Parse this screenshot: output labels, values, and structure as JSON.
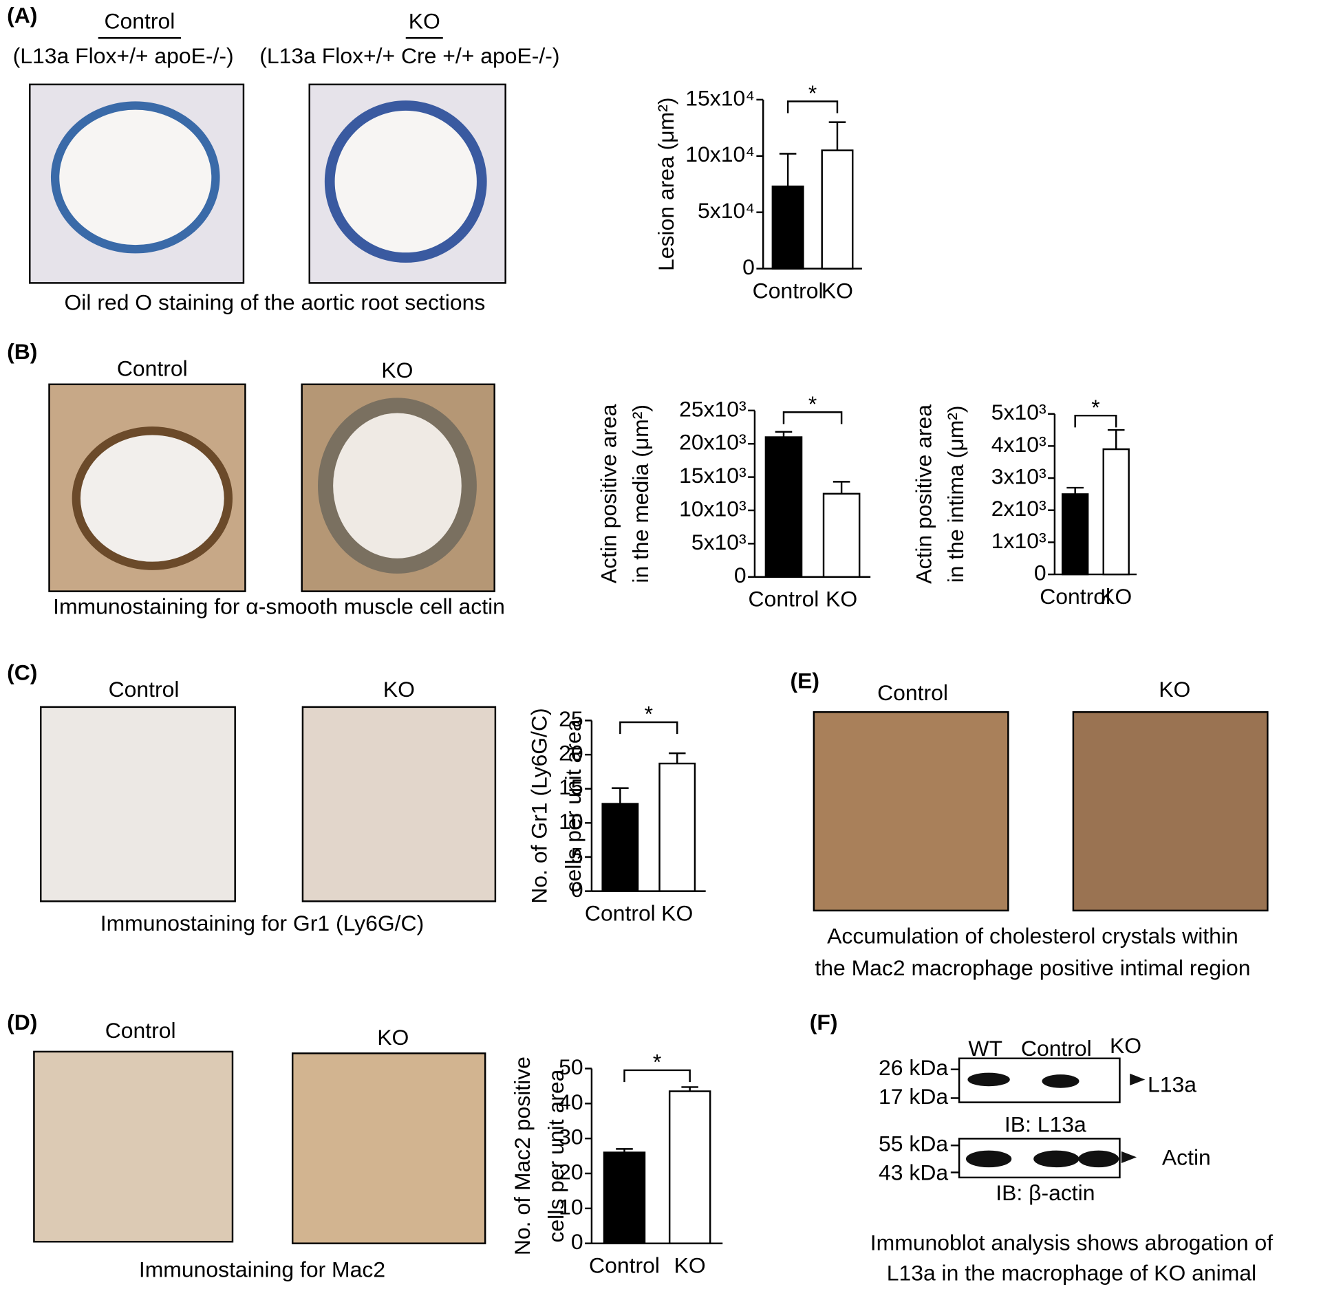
{
  "panels": [
    {
      "label": "(A)",
      "texts": [
        "Control",
        "KO",
        "(L13a Flox+/+ apoE-/-)",
        "(L13a Flox+/+ Cre +/+ apoE-/-)",
        "Oil red O staining of the aortic root sections"
      ]
    },
    {
      "label": "(B)",
      "texts": [
        "Control",
        "KO",
        "Immunostaining for α-smooth muscle cell actin"
      ]
    },
    {
      "label": "(C)",
      "texts": [
        "Control",
        "KO",
        "Immunostaining for Gr1 (Ly6G/C)"
      ]
    },
    {
      "label": "(D)",
      "texts": [
        "Control",
        "KO",
        "Immunostaining for Mac2"
      ]
    },
    {
      "label": "(E)",
      "texts": [
        "Control",
        "KO",
        "Accumulation of cholesterol crystals within",
        "the Mac2 macrophage positive intimal region"
      ]
    },
    {
      "label": "(F)",
      "texts": [
        "WT",
        "Control",
        "KO",
        "26 kDa",
        "17 kDa",
        "L13a",
        "IB: L13a",
        "55 kDa",
        "43 kDa",
        "Actin",
        "IB: β-actin",
        "Immunoblot analysis shows abrogation of",
        "L13a in the macrophage of KO animal"
      ]
    }
  ],
  "chart_data": [
    {
      "type": "bar",
      "ylabel": [
        "Lesion area (μm²)"
      ],
      "categories": [
        "Control",
        "KO"
      ],
      "values": [
        73000,
        105000
      ],
      "errors": [
        29000,
        25000
      ],
      "colors": [
        "#000000",
        "#ffffff"
      ],
      "annotation": "*",
      "ylim": [
        0,
        150000
      ],
      "yticks": [
        0,
        {
          "value": 50000,
          "label": "5x10⁴"
        },
        {
          "value": 100000,
          "label": "10x10⁴"
        },
        {
          "value": 150000,
          "label": "15x10⁴"
        }
      ]
    },
    {
      "type": "bar",
      "ylabel": [
        "Actin positive area",
        "in the media (μm²)"
      ],
      "categories": [
        "Control",
        "KO"
      ],
      "values": [
        21000,
        12500
      ],
      "errors": [
        800,
        1800
      ],
      "colors": [
        "#000000",
        "#ffffff"
      ],
      "annotation": "*",
      "ylim": [
        0,
        25000
      ],
      "yticks": [
        0,
        {
          "value": 5000,
          "label": "5x10³"
        },
        {
          "value": 10000,
          "label": "10x10³"
        },
        {
          "value": 15000,
          "label": "15x10³"
        },
        {
          "value": 20000,
          "label": "20x10³"
        },
        {
          "value": 25000,
          "label": "25x10³"
        }
      ]
    },
    {
      "type": "bar",
      "ylabel": [
        "Actin positive area",
        "in the intima (μm²)"
      ],
      "categories": [
        "Control",
        "KO"
      ],
      "values": [
        2500,
        3900
      ],
      "errors": [
        200,
        600
      ],
      "colors": [
        "#000000",
        "#ffffff"
      ],
      "annotation": "*",
      "ylim": [
        0,
        5000
      ],
      "yticks": [
        0,
        {
          "value": 1000,
          "label": "1x10³"
        },
        {
          "value": 2000,
          "label": "2x10³"
        },
        {
          "value": 3000,
          "label": "3x10³"
        },
        {
          "value": 4000,
          "label": "4x10³"
        },
        {
          "value": 5000,
          "label": "5x10³"
        }
      ]
    },
    {
      "type": "bar",
      "ylabel": [
        "No. of Gr1 (Ly6G/C)",
        "cells per unit area"
      ],
      "categories": [
        "Control",
        "KO"
      ],
      "values": [
        12.8,
        18.7
      ],
      "errors": [
        2.3,
        1.5
      ],
      "colors": [
        "#000000",
        "#ffffff"
      ],
      "annotation": "*",
      "ylim": [
        0,
        25
      ],
      "yticks": [
        0,
        5,
        10,
        15,
        20,
        25
      ]
    },
    {
      "type": "bar",
      "ylabel": [
        "No. of Mac2  positive",
        "cells per unit area"
      ],
      "categories": [
        "Control",
        "KO"
      ],
      "values": [
        26,
        43.5
      ],
      "errors": [
        1,
        1.2
      ],
      "colors": [
        "#000000",
        "#ffffff"
      ],
      "annotation": "*",
      "ylim": [
        0,
        50
      ],
      "yticks": [
        0,
        10,
        20,
        30,
        40,
        50
      ]
    }
  ]
}
